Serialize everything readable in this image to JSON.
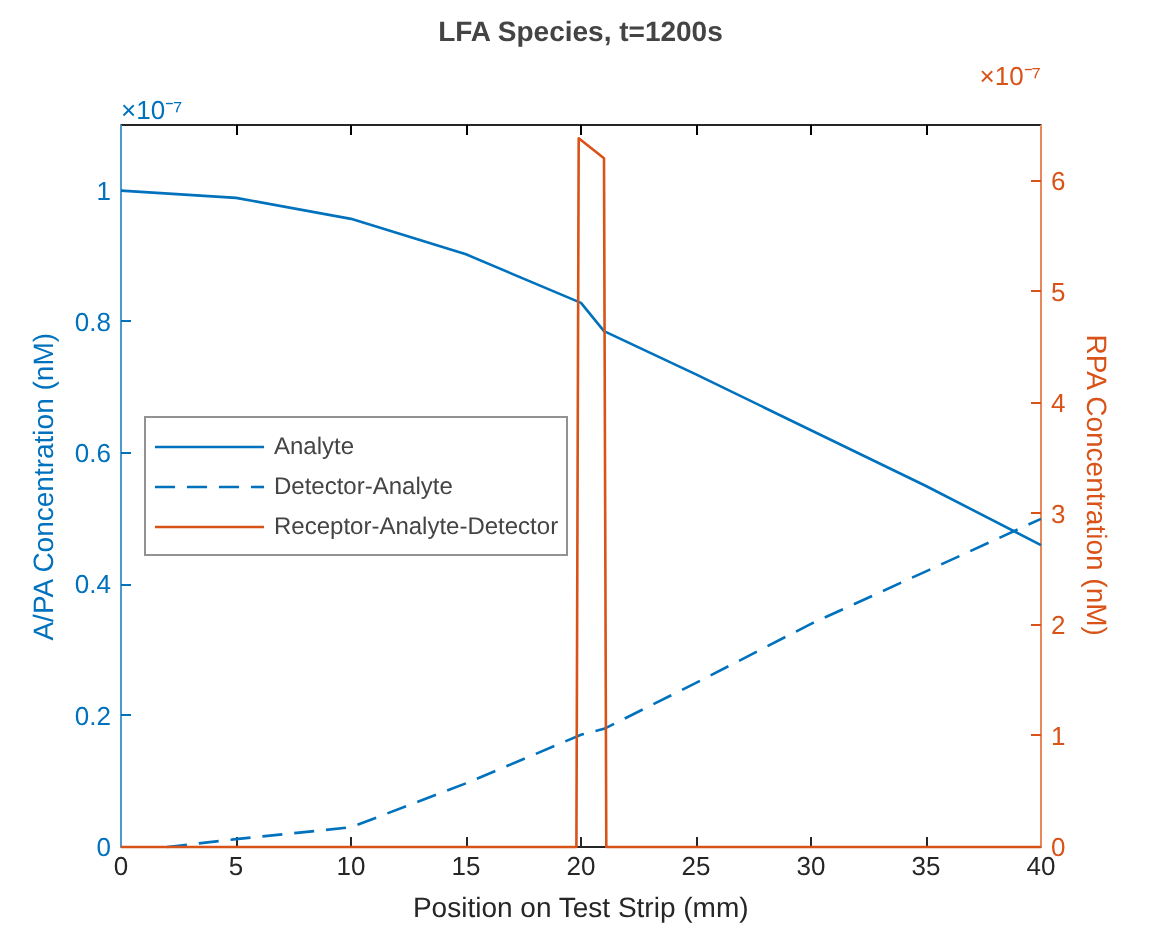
{
  "chart_data": {
    "type": "line",
    "title": "LFA Species, t=1200s",
    "xlabel": "Position on Test Strip (mm)",
    "ylabel": "A/PA Concentration (nM)",
    "y2label": "RPA Concentration (nM)",
    "annotations": [
      "×10⁻⁷",
      "×10⁻⁷"
    ],
    "xlim": [
      0,
      40
    ],
    "xticks": [
      0,
      5,
      10,
      15,
      20,
      25,
      30,
      35,
      40
    ],
    "ylim": [
      0,
      1.1
    ],
    "yticks": [
      0,
      0.2,
      0.4,
      0.6,
      0.8,
      1
    ],
    "y2lim": [
      0,
      6.5
    ],
    "y2ticks": [
      0,
      1,
      2,
      3,
      4,
      5,
      6
    ],
    "legend": "left",
    "grid": false,
    "series": [
      {
        "name": "Analyte",
        "color": "#0072bd",
        "line_style": "solid",
        "x": [
          0,
          5,
          10,
          15,
          20,
          21,
          25,
          30,
          35,
          40
        ],
        "values": [
          1.0,
          0.989,
          0.957,
          0.903,
          0.829,
          0.786,
          0.72,
          0.635,
          0.55,
          0.46
        ]
      },
      {
        "name": "Detector-Analyte",
        "color": "#0072bd",
        "line_style": "dashed",
        "x": [
          2,
          2.5,
          5,
          10,
          15,
          20,
          21,
          25,
          30,
          35,
          40
        ],
        "values": [
          0,
          0.002,
          0.012,
          0.03,
          0.097,
          0.171,
          0.18,
          0.25,
          0.34,
          0.42,
          0.5
        ]
      },
      {
        "name": "Receptor-Analyte-Detector",
        "color": "#d95319",
        "line_style": "solid",
        "axis": "y2",
        "x": [
          0,
          19.8,
          19.9,
          21,
          21.1,
          40
        ],
        "values": [
          0,
          0,
          6.38,
          6.2,
          0,
          0
        ]
      }
    ]
  }
}
